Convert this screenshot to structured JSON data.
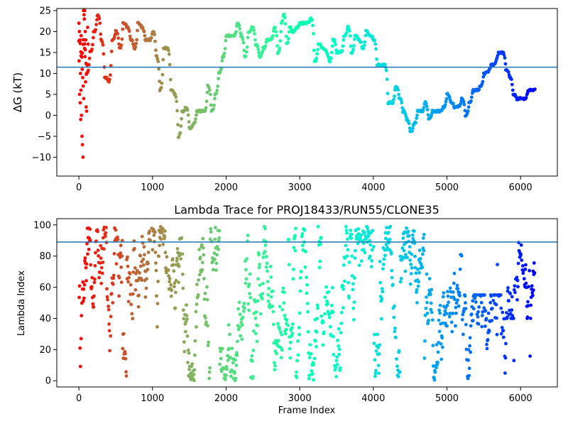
{
  "chart_data": [
    {
      "type": "scatter",
      "title": "",
      "xlabel": "",
      "ylabel": "ΔG (kT)",
      "xlim": [
        -300,
        6500
      ],
      "ylim": [
        -14.5,
        25.5
      ],
      "xticks": [
        0,
        1000,
        2000,
        3000,
        4000,
        5000,
        6000
      ],
      "yticks": [
        -10,
        -5,
        0,
        5,
        10,
        15,
        20,
        25
      ],
      "grid": false,
      "hline": {
        "y": 11.5,
        "color": "#1f77b4"
      },
      "colormap": "rainbow (reversed: red at frame 0, violet at last frame)",
      "segments": [
        [
          0,
          18
        ],
        [
          30,
          14
        ],
        [
          60,
          18
        ],
        [
          100,
          10
        ],
        [
          150,
          15
        ],
        [
          200,
          20
        ],
        [
          250,
          24
        ],
        [
          300,
          18
        ],
        [
          350,
          9
        ],
        [
          400,
          8
        ],
        [
          450,
          18
        ],
        [
          500,
          20
        ],
        [
          550,
          16
        ],
        [
          600,
          22
        ],
        [
          650,
          21
        ],
        [
          700,
          18
        ],
        [
          750,
          16
        ],
        [
          800,
          22
        ],
        [
          850,
          21
        ],
        [
          900,
          18
        ],
        [
          950,
          18
        ],
        [
          1000,
          20
        ],
        [
          1050,
          14
        ],
        [
          1100,
          6
        ],
        [
          1150,
          16
        ],
        [
          1200,
          16
        ],
        [
          1250,
          6
        ],
        [
          1300,
          5
        ],
        [
          1350,
          -5
        ],
        [
          1400,
          1
        ],
        [
          1450,
          2
        ],
        [
          1500,
          -3
        ],
        [
          1550,
          -2
        ],
        [
          1600,
          1
        ],
        [
          1700,
          1
        ],
        [
          1750,
          7
        ],
        [
          1800,
          1
        ],
        [
          1850,
          5
        ],
        [
          1900,
          10
        ],
        [
          1950,
          14
        ],
        [
          2000,
          19
        ],
        [
          2100,
          19
        ],
        [
          2150,
          22
        ],
        [
          2200,
          19
        ],
        [
          2250,
          14
        ],
        [
          2300,
          20
        ],
        [
          2350,
          21
        ],
        [
          2400,
          17
        ],
        [
          2450,
          14
        ],
        [
          2500,
          16
        ],
        [
          2550,
          18
        ],
        [
          2600,
          18
        ],
        [
          2650,
          21
        ],
        [
          2700,
          15
        ],
        [
          2750,
          22
        ],
        [
          2780,
          24
        ],
        [
          2820,
          17
        ],
        [
          2860,
          21
        ],
        [
          2900,
          20
        ],
        [
          2950,
          21
        ],
        [
          3000,
          22
        ],
        [
          3050,
          22
        ],
        [
          3150,
          23
        ],
        [
          3200,
          13
        ],
        [
          3250,
          17
        ],
        [
          3300,
          16
        ],
        [
          3400,
          13
        ],
        [
          3450,
          18
        ],
        [
          3500,
          15
        ],
        [
          3550,
          15
        ],
        [
          3600,
          19
        ],
        [
          3650,
          21
        ],
        [
          3700,
          15
        ],
        [
          3750,
          19
        ],
        [
          3800,
          18
        ],
        [
          3850,
          16
        ],
        [
          3900,
          20
        ],
        [
          3950,
          19
        ],
        [
          4000,
          18
        ],
        [
          4050,
          12
        ],
        [
          4100,
          12
        ],
        [
          4150,
          12
        ],
        [
          4200,
          3
        ],
        [
          4250,
          3
        ],
        [
          4300,
          7
        ],
        [
          4350,
          4
        ],
        [
          4400,
          1
        ],
        [
          4450,
          -1
        ],
        [
          4500,
          -4
        ],
        [
          4550,
          -2
        ],
        [
          4600,
          1
        ],
        [
          4650,
          1
        ],
        [
          4700,
          3
        ],
        [
          4750,
          -1
        ],
        [
          4800,
          1
        ],
        [
          4850,
          1
        ],
        [
          4900,
          1
        ],
        [
          4950,
          2
        ],
        [
          5000,
          5
        ],
        [
          5050,
          3
        ],
        [
          5100,
          2
        ],
        [
          5150,
          2
        ],
        [
          5200,
          4
        ],
        [
          5250,
          0
        ],
        [
          5300,
          3
        ],
        [
          5350,
          6
        ],
        [
          5400,
          6
        ],
        [
          5450,
          7
        ],
        [
          5500,
          10
        ],
        [
          5600,
          12
        ],
        [
          5700,
          15
        ],
        [
          5750,
          15
        ],
        [
          5800,
          11
        ],
        [
          5850,
          9
        ],
        [
          5900,
          5
        ],
        [
          5950,
          4
        ],
        [
          6000,
          4
        ],
        [
          6050,
          4
        ],
        [
          6100,
          6
        ],
        [
          6150,
          6
        ]
      ],
      "early_scatter_y": [
        22,
        20,
        18,
        10,
        6,
        0,
        -5,
        -7,
        -10,
        25,
        24,
        16,
        14,
        8,
        2,
        1,
        12,
        21,
        17,
        13,
        5,
        3,
        -1,
        19,
        15,
        11,
        9,
        7,
        4,
        23,
        25,
        20,
        18
      ]
    },
    {
      "type": "scatter",
      "title": "Lambda Trace for PROJ18433/RUN55/CLONE35",
      "xlabel": "Frame Index",
      "ylabel": "Lambda Index",
      "xlim": [
        -300,
        6500
      ],
      "ylim": [
        -4,
        104
      ],
      "xticks": [
        0,
        1000,
        2000,
        3000,
        4000,
        5000,
        6000
      ],
      "yticks": [
        0,
        20,
        40,
        60,
        80,
        100
      ],
      "grid": false,
      "hline": {
        "y": 89,
        "color": "#1f77b4"
      },
      "colormap": "rainbow (reversed: red at frame 0, violet at last frame)",
      "n_frames": 6200,
      "lambda_range": [
        0,
        99
      ]
    }
  ]
}
